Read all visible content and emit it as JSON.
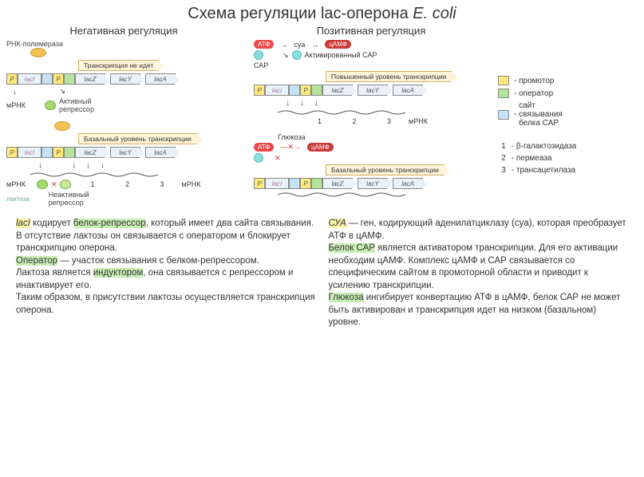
{
  "title_a": "Схема регуляции lac-оперона ",
  "title_b": "E. coli",
  "neg_title": "Негативная регуляция",
  "pos_title": "Позитивная регуляция",
  "rnap": "РНК-полимераза",
  "trans_off": "Транскрипция не идет",
  "trans_basal": "Базальный уровень транскрипции",
  "trans_high": "Повышенный уровень транскрипции",
  "mrna": "мРНК",
  "active_rep": "Активный\nрепрессор",
  "inactive_rep": "Неактивный\nрепрессор",
  "lactose": "лактоза",
  "atp": "АТФ",
  "camp": "цАМФ",
  "cya": "cya",
  "cap": "САР",
  "act_cap": "Активированный САР",
  "glucose": "Глюкоза",
  "genes": {
    "p": "P",
    "laci": "lacI",
    "o": "",
    "z": "lacZ",
    "y": "lacY",
    "a": "lacA"
  },
  "nums": "1 2 3",
  "legend": {
    "prom": "промотор",
    "oper": "оператор",
    "capsite": "сайт\nсвязывания\nбелка САР",
    "n1": "β-галактозидаза",
    "n2": "пермеаза",
    "n3": "трансацетилаза"
  },
  "colors": {
    "prom": "#ffe97a",
    "oper": "#b4e59a",
    "cap": "#c5e3f5"
  },
  "text_left": [
    {
      "t": "lacI",
      "h": "y"
    },
    {
      "t": " кодирует "
    },
    {
      "t": "белок-репрессор",
      "h": "g"
    },
    {
      "t": ", который имеет два сайта связывания.\nВ отсутствие лактозы он связывается с оператором и блокирует транскрипцию оперона.\n"
    },
    {
      "t": "Оператор",
      "h": "g"
    },
    {
      "t": " — участок связывания с белком-репрессором.\nЛактоза является "
    },
    {
      "t": "индуктором",
      "h": "g"
    },
    {
      "t": ", она связывается с репрессором и инактивирует его.\nТаким образом, в присутствии лактозы осуществляется транскрипция оперона."
    }
  ],
  "text_right": [
    {
      "t": "СУА",
      "h": "y"
    },
    {
      "t": " — ген, кодирующий аденилатциклазу (cya), которая преобразует АТФ в цАМФ.\n"
    },
    {
      "t": "Белок САР",
      "h": "g"
    },
    {
      "t": " является активатором транскрипции. Для его активации необходим цАМФ. Комплекс цАМФ и САР связывается со специфическим сайтом в промоторной области и приводит к усилению транскрипции.\n"
    },
    {
      "t": "Глюкоза",
      "h": "g"
    },
    {
      "t": " ингибирует конвертацию АТФ в цАМФ, белок САР не может быть активирован и транскрипция идет на низком (базальном) уровне."
    }
  ]
}
